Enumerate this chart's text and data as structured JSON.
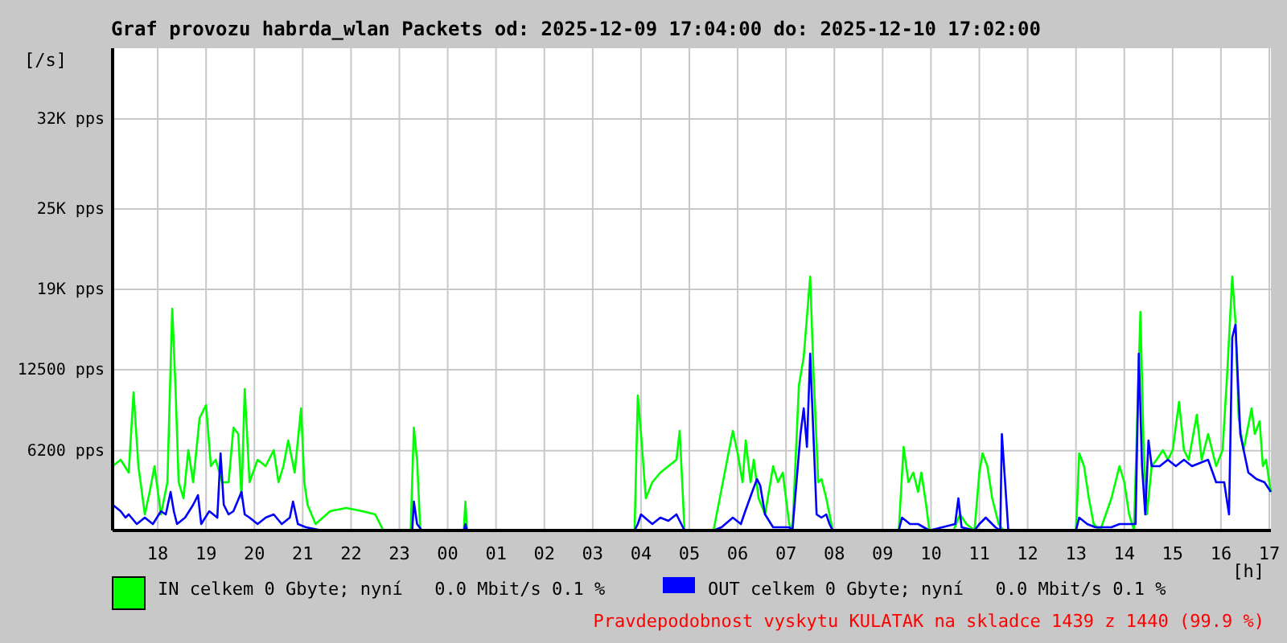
{
  "chart_data": {
    "type": "line",
    "title": "Graf provozu habrda_wlan Packets od: 2025-12-09 17:04:00 do: 2025-12-10 17:02:00",
    "ylabel": "[/s]",
    "xlabel": "[h]",
    "xlim": [
      "2025-12-09T17:04",
      "2025-12-10T17:02"
    ],
    "ylim": [
      0,
      37500
    ],
    "xticks": [
      {
        "value": "2025-12-09T18:00",
        "label": "18"
      },
      {
        "value": "2025-12-09T19:00",
        "label": "19"
      },
      {
        "value": "2025-12-09T20:00",
        "label": "20"
      },
      {
        "value": "2025-12-09T21:00",
        "label": "21"
      },
      {
        "value": "2025-12-09T22:00",
        "label": "22"
      },
      {
        "value": "2025-12-09T23:00",
        "label": "23"
      },
      {
        "value": "2025-12-10T00:00",
        "label": "00"
      },
      {
        "value": "2025-12-10T01:00",
        "label": "01"
      },
      {
        "value": "2025-12-10T02:00",
        "label": "02"
      },
      {
        "value": "2025-12-10T03:00",
        "label": "03"
      },
      {
        "value": "2025-12-10T04:00",
        "label": "04"
      },
      {
        "value": "2025-12-10T05:00",
        "label": "05"
      },
      {
        "value": "2025-12-10T06:00",
        "label": "06"
      },
      {
        "value": "2025-12-10T07:00",
        "label": "07"
      },
      {
        "value": "2025-12-10T08:00",
        "label": "08"
      },
      {
        "value": "2025-12-10T09:00",
        "label": "09"
      },
      {
        "value": "2025-12-10T10:00",
        "label": "10"
      },
      {
        "value": "2025-12-10T11:00",
        "label": "11"
      },
      {
        "value": "2025-12-10T12:00",
        "label": "12"
      },
      {
        "value": "2025-12-10T13:00",
        "label": "13"
      },
      {
        "value": "2025-12-10T14:00",
        "label": "14"
      },
      {
        "value": "2025-12-10T15:00",
        "label": "15"
      },
      {
        "value": "2025-12-10T16:00",
        "label": "16"
      },
      {
        "value": "2025-12-10T17:00",
        "label": "17"
      }
    ],
    "yticks": [
      {
        "value": 6200,
        "label": "6200 pps"
      },
      {
        "value": 12500,
        "label": "12500 pps"
      },
      {
        "value": 18750,
        "label": "19K pps"
      },
      {
        "value": 25000,
        "label": "25K pps"
      },
      {
        "value": 32000,
        "label": "32K pps"
      }
    ],
    "grid": true,
    "legend": "bottom",
    "annotations": [
      "Pravdepodobnost vyskytu KULATAK na skladce 1439 z 1440 (99.9 %)"
    ],
    "series": [
      {
        "name": "IN celkem 0 Gbyte; nyní   0.0 Mbit/s 0.1 %",
        "color": "#00ff00",
        "x": [
          "2025-12-09T17:04",
          "2025-12-09T17:14",
          "2025-12-09T17:24",
          "2025-12-09T17:30",
          "2025-12-09T17:36",
          "2025-12-09T17:44",
          "2025-12-09T17:50",
          "2025-12-09T17:56",
          "2025-12-09T18:04",
          "2025-12-09T18:12",
          "2025-12-09T18:18",
          "2025-12-09T18:22",
          "2025-12-09T18:26",
          "2025-12-09T18:32",
          "2025-12-09T18:38",
          "2025-12-09T18:44",
          "2025-12-09T18:52",
          "2025-12-09T19:00",
          "2025-12-09T19:06",
          "2025-12-09T19:12",
          "2025-12-09T19:20",
          "2025-12-09T19:28",
          "2025-12-09T19:34",
          "2025-12-09T19:40",
          "2025-12-09T19:44",
          "2025-12-09T19:48",
          "2025-12-09T19:54",
          "2025-12-09T20:04",
          "2025-12-09T20:14",
          "2025-12-09T20:24",
          "2025-12-09T20:30",
          "2025-12-09T20:36",
          "2025-12-09T20:42",
          "2025-12-09T20:50",
          "2025-12-09T20:58",
          "2025-12-09T21:02",
          "2025-12-09T21:06",
          "2025-12-09T21:16",
          "2025-12-09T21:34",
          "2025-12-09T21:54",
          "2025-12-09T22:14",
          "2025-12-09T22:30",
          "2025-12-09T22:40",
          "2025-12-09T23:14",
          "2025-12-09T23:18",
          "2025-12-09T23:22",
          "2025-12-09T23:26",
          "2025-12-10T00:20",
          "2025-12-10T00:22",
          "2025-12-10T00:24",
          "2025-12-10T03:52",
          "2025-12-10T03:56",
          "2025-12-10T04:00",
          "2025-12-10T04:06",
          "2025-12-10T04:14",
          "2025-12-10T04:24",
          "2025-12-10T04:34",
          "2025-12-10T04:44",
          "2025-12-10T04:48",
          "2025-12-10T04:54",
          "2025-12-10T05:30",
          "2025-12-10T05:54",
          "2025-12-10T06:00",
          "2025-12-10T06:06",
          "2025-12-10T06:10",
          "2025-12-10T06:16",
          "2025-12-10T06:20",
          "2025-12-10T06:26",
          "2025-12-10T06:34",
          "2025-12-10T06:44",
          "2025-12-10T06:50",
          "2025-12-10T06:56",
          "2025-12-10T07:04",
          "2025-12-10T07:08",
          "2025-12-10T07:16",
          "2025-12-10T07:22",
          "2025-12-10T07:30",
          "2025-12-10T07:34",
          "2025-12-10T07:40",
          "2025-12-10T07:44",
          "2025-12-10T07:50",
          "2025-12-10T07:58",
          "2025-12-10T09:20",
          "2025-12-10T09:26",
          "2025-12-10T09:32",
          "2025-12-10T09:38",
          "2025-12-10T09:44",
          "2025-12-10T09:48",
          "2025-12-10T09:54",
          "2025-12-10T09:58",
          "2025-12-10T10:28",
          "2025-12-10T10:36",
          "2025-12-10T10:44",
          "2025-12-10T10:54",
          "2025-12-10T11:00",
          "2025-12-10T11:04",
          "2025-12-10T11:10",
          "2025-12-10T11:16",
          "2025-12-10T11:24",
          "2025-12-10T11:30",
          "2025-12-10T13:00",
          "2025-12-10T13:04",
          "2025-12-10T13:10",
          "2025-12-10T13:16",
          "2025-12-10T13:22",
          "2025-12-10T13:30",
          "2025-12-10T13:44",
          "2025-12-10T13:54",
          "2025-12-10T14:00",
          "2025-12-10T14:06",
          "2025-12-10T14:12",
          "2025-12-10T14:20",
          "2025-12-10T14:24",
          "2025-12-10T14:28",
          "2025-12-10T14:34",
          "2025-12-10T14:40",
          "2025-12-10T14:48",
          "2025-12-10T14:54",
          "2025-12-10T15:00",
          "2025-12-10T15:08",
          "2025-12-10T15:14",
          "2025-12-10T15:20",
          "2025-12-10T15:30",
          "2025-12-10T15:36",
          "2025-12-10T15:44",
          "2025-12-10T15:54",
          "2025-12-10T16:02",
          "2025-12-10T16:08",
          "2025-12-10T16:14",
          "2025-12-10T16:18",
          "2025-12-10T16:22",
          "2025-12-10T16:28",
          "2025-12-10T16:38",
          "2025-12-10T16:42",
          "2025-12-10T16:48",
          "2025-12-10T16:52",
          "2025-12-10T16:56",
          "2025-12-10T17:00",
          "2025-12-10T17:02"
        ],
        "values": [
          5000,
          5500,
          4500,
          10750,
          5000,
          1250,
          3000,
          5000,
          1250,
          3750,
          17250,
          11250,
          3750,
          2500,
          6250,
          3750,
          8750,
          9750,
          5000,
          5500,
          3750,
          3750,
          8000,
          7500,
          2500,
          11000,
          3750,
          5500,
          5000,
          6250,
          3750,
          5000,
          7000,
          4500,
          9500,
          3750,
          2000,
          500,
          1500,
          1750,
          1500,
          1250,
          0,
          0,
          8000,
          5500,
          0,
          0,
          2250,
          0,
          0,
          10500,
          7500,
          2500,
          3750,
          4500,
          5000,
          5500,
          7750,
          0,
          0,
          7750,
          6000,
          3750,
          7000,
          3750,
          5500,
          2500,
          1250,
          5000,
          3750,
          4500,
          500,
          0,
          11250,
          13500,
          19750,
          12500,
          3750,
          4000,
          2500,
          0,
          0,
          6500,
          3750,
          4500,
          3000,
          4500,
          2000,
          0,
          0,
          1250,
          500,
          0,
          4500,
          6000,
          5000,
          2500,
          500,
          0,
          0,
          6000,
          5000,
          2500,
          500,
          0,
          2500,
          5000,
          3750,
          1250,
          0,
          17000,
          6250,
          1250,
          5000,
          5500,
          6250,
          5500,
          6250,
          10000,
          6250,
          5500,
          9000,
          5500,
          7500,
          5000,
          6250,
          12500,
          19750,
          16250,
          8750,
          6250,
          9500,
          7500,
          8500,
          5000,
          5500,
          3750,
          3000
        ]
      },
      {
        "name": "OUT celkem 0 Gbyte; nyní   0.0 Mbit/s 0.1 %",
        "color": "#0000ff",
        "x": [
          "2025-12-09T17:04",
          "2025-12-09T17:14",
          "2025-12-09T17:20",
          "2025-12-09T17:24",
          "2025-12-09T17:34",
          "2025-12-09T17:44",
          "2025-12-09T17:54",
          "2025-12-09T18:04",
          "2025-12-09T18:10",
          "2025-12-09T18:16",
          "2025-12-09T18:20",
          "2025-12-09T18:24",
          "2025-12-09T18:34",
          "2025-12-09T18:44",
          "2025-12-09T18:50",
          "2025-12-09T18:54",
          "2025-12-09T19:04",
          "2025-12-09T19:14",
          "2025-12-09T19:18",
          "2025-12-09T19:22",
          "2025-12-09T19:28",
          "2025-12-09T19:34",
          "2025-12-09T19:44",
          "2025-12-09T19:48",
          "2025-12-09T19:54",
          "2025-12-09T20:04",
          "2025-12-09T20:14",
          "2025-12-09T20:24",
          "2025-12-09T20:34",
          "2025-12-09T20:44",
          "2025-12-09T20:48",
          "2025-12-09T20:54",
          "2025-12-09T21:04",
          "2025-12-09T21:24",
          "2025-12-09T23:16",
          "2025-12-09T23:18",
          "2025-12-09T23:22",
          "2025-12-09T23:28",
          "2025-12-10T00:20",
          "2025-12-10T00:22",
          "2025-12-10T00:24",
          "2025-12-10T03:52",
          "2025-12-10T03:56",
          "2025-12-10T04:00",
          "2025-12-10T04:14",
          "2025-12-10T04:24",
          "2025-12-10T04:34",
          "2025-12-10T04:44",
          "2025-12-10T04:50",
          "2025-12-10T04:54",
          "2025-12-10T05:30",
          "2025-12-10T05:40",
          "2025-12-10T05:54",
          "2025-12-10T06:04",
          "2025-12-10T06:08",
          "2025-12-10T06:18",
          "2025-12-10T06:24",
          "2025-12-10T06:28",
          "2025-12-10T06:34",
          "2025-12-10T06:44",
          "2025-12-10T07:04",
          "2025-12-10T07:08",
          "2025-12-10T07:18",
          "2025-12-10T07:22",
          "2025-12-10T07:26",
          "2025-12-10T07:30",
          "2025-12-10T07:34",
          "2025-12-10T07:38",
          "2025-12-10T07:44",
          "2025-12-10T07:50",
          "2025-12-10T07:54",
          "2025-12-10T07:58",
          "2025-12-10T09:20",
          "2025-12-10T09:24",
          "2025-12-10T09:34",
          "2025-12-10T09:44",
          "2025-12-10T09:58",
          "2025-12-10T10:30",
          "2025-12-10T10:34",
          "2025-12-10T10:38",
          "2025-12-10T10:54",
          "2025-12-10T11:00",
          "2025-12-10T11:08",
          "2025-12-10T11:20",
          "2025-12-10T11:26",
          "2025-12-10T11:28",
          "2025-12-10T11:32",
          "2025-12-10T11:36",
          "2025-12-10T13:00",
          "2025-12-10T13:04",
          "2025-12-10T13:14",
          "2025-12-10T13:24",
          "2025-12-10T13:44",
          "2025-12-10T13:54",
          "2025-12-10T14:04",
          "2025-12-10T14:14",
          "2025-12-10T14:18",
          "2025-12-10T14:22",
          "2025-12-10T14:26",
          "2025-12-10T14:30",
          "2025-12-10T14:34",
          "2025-12-10T14:44",
          "2025-12-10T14:54",
          "2025-12-10T15:04",
          "2025-12-10T15:14",
          "2025-12-10T15:24",
          "2025-12-10T15:34",
          "2025-12-10T15:44",
          "2025-12-10T15:54",
          "2025-12-10T16:04",
          "2025-12-10T16:10",
          "2025-12-10T16:14",
          "2025-12-10T16:18",
          "2025-12-10T16:24",
          "2025-12-10T16:34",
          "2025-12-10T16:44",
          "2025-12-10T16:54",
          "2025-12-10T17:02"
        ],
        "values": [
          2000,
          1500,
          1000,
          1250,
          500,
          1000,
          500,
          1500,
          1250,
          3000,
          1500,
          500,
          1000,
          2000,
          2750,
          500,
          1500,
          1000,
          6000,
          2000,
          1250,
          1500,
          3000,
          1250,
          1000,
          500,
          1000,
          1250,
          500,
          1000,
          2250,
          500,
          250,
          0,
          0,
          2250,
          500,
          0,
          0,
          500,
          0,
          0,
          500,
          1250,
          500,
          1000,
          750,
          1250,
          500,
          0,
          0,
          250,
          1000,
          500,
          1250,
          3000,
          4000,
          3500,
          1250,
          250,
          250,
          0,
          7500,
          9500,
          6500,
          13750,
          7500,
          1250,
          1000,
          1250,
          500,
          0,
          0,
          1000,
          500,
          500,
          0,
          500,
          2500,
          250,
          0,
          500,
          1000,
          250,
          0,
          7500,
          3750,
          0,
          0,
          1000,
          500,
          250,
          250,
          500,
          500,
          500,
          13750,
          5000,
          1250,
          7000,
          5000,
          5000,
          5500,
          5000,
          5500,
          5000,
          5250,
          5500,
          3750,
          3750,
          1250,
          15000,
          16000,
          7500,
          4500,
          4000,
          3750,
          3000
        ]
      }
    ]
  }
}
